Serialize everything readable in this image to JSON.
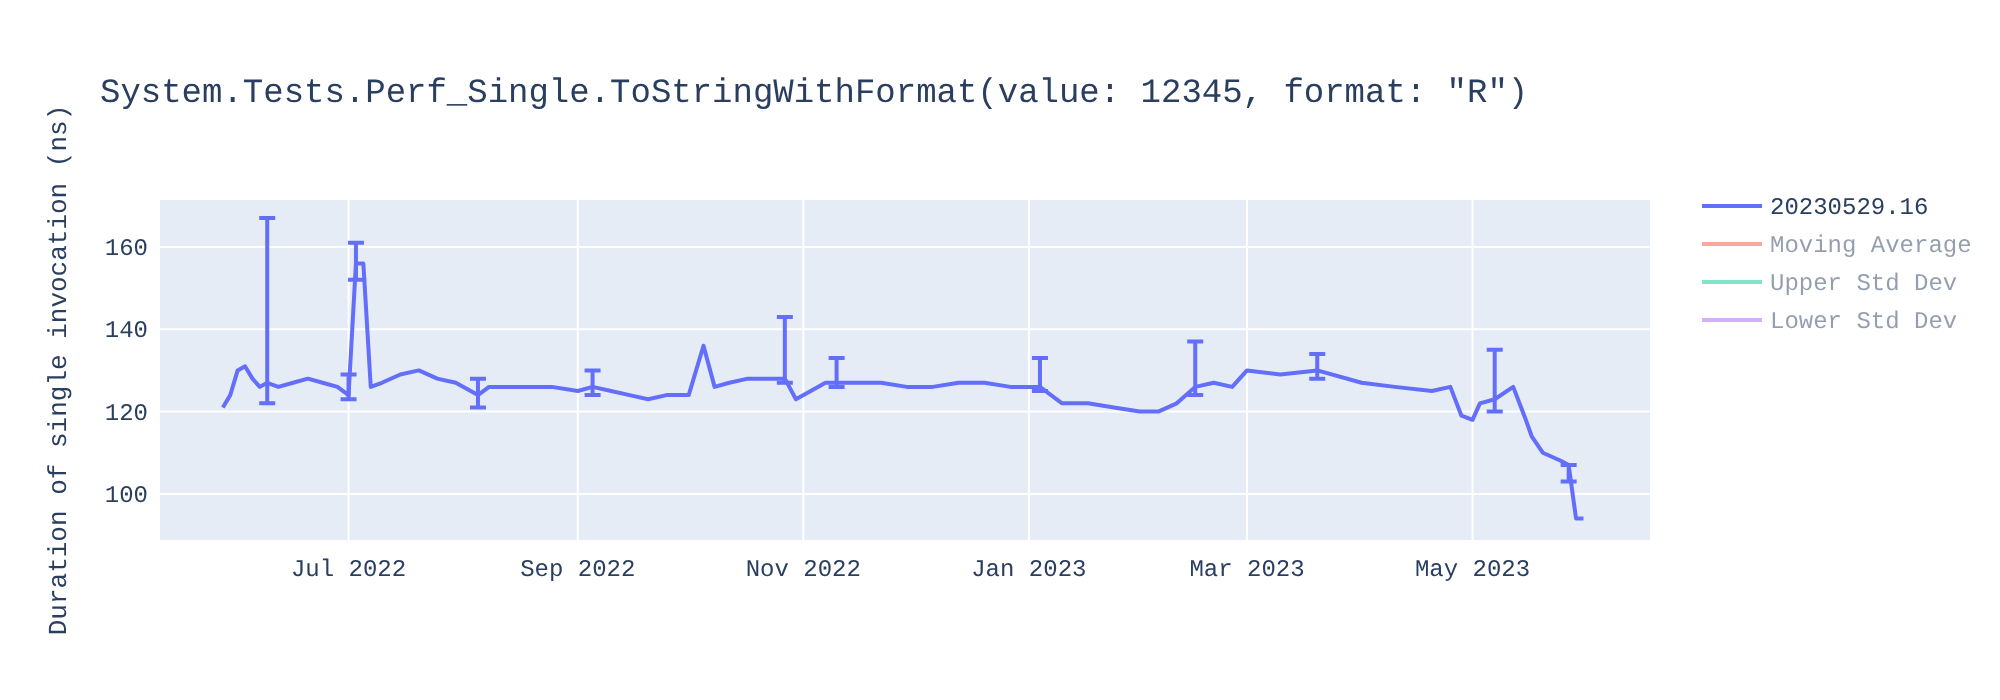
{
  "chart_data": {
    "type": "line",
    "title": "System.Tests.Perf_Single.ToStringWithFormat(value: 12345, format: \"R\")",
    "ylabel": "Duration of single invocation (ns)",
    "x": [
      "2022-05-28",
      "2022-05-30",
      "2022-06-01",
      "2022-06-03",
      "2022-06-05",
      "2022-06-07",
      "2022-06-09",
      "2022-06-12",
      "2022-06-16",
      "2022-06-20",
      "2022-06-24",
      "2022-06-28",
      "2022-07-01",
      "2022-07-03",
      "2022-07-05",
      "2022-07-07",
      "2022-07-10",
      "2022-07-15",
      "2022-07-20",
      "2022-07-25",
      "2022-07-30",
      "2022-08-05",
      "2022-08-08",
      "2022-08-25",
      "2022-09-01",
      "2022-09-05",
      "2022-09-10",
      "2022-09-15",
      "2022-09-20",
      "2022-09-25",
      "2022-10-01",
      "2022-10-05",
      "2022-10-08",
      "2022-10-12",
      "2022-10-17",
      "2022-10-22",
      "2022-10-27",
      "2022-10-30",
      "2022-11-03",
      "2022-11-07",
      "2022-11-10",
      "2022-11-15",
      "2022-11-22",
      "2022-11-29",
      "2022-12-06",
      "2022-12-13",
      "2022-12-20",
      "2022-12-27",
      "2023-01-01",
      "2023-01-04",
      "2023-01-10",
      "2023-01-17",
      "2023-01-24",
      "2023-01-31",
      "2023-02-05",
      "2023-02-10",
      "2023-02-15",
      "2023-02-20",
      "2023-02-25",
      "2023-03-01",
      "2023-03-10",
      "2023-03-20",
      "2023-04-01",
      "2023-04-10",
      "2023-04-20",
      "2023-04-25",
      "2023-04-28",
      "2023-05-01",
      "2023-05-03",
      "2023-05-07",
      "2023-05-12",
      "2023-05-15",
      "2023-05-17",
      "2023-05-20",
      "2023-05-25",
      "2023-05-27",
      "2023-05-29",
      "2023-05-31"
    ],
    "series": [
      {
        "name": "20230529.16",
        "color": "#636efa",
        "values": [
          121,
          124,
          130,
          131,
          128,
          126,
          127,
          126,
          127,
          128,
          127,
          126,
          124,
          156,
          156,
          126,
          127,
          129,
          130,
          128,
          127,
          124,
          126,
          126,
          125,
          126,
          125,
          124,
          123,
          124,
          124,
          136,
          126,
          127,
          128,
          128,
          128,
          123,
          125,
          127,
          127,
          127,
          127,
          126,
          126,
          127,
          127,
          126,
          126,
          126,
          122,
          122,
          121,
          120,
          120,
          122,
          126,
          127,
          126,
          130,
          129,
          130,
          127,
          126,
          125,
          126,
          119,
          118,
          122,
          123,
          126,
          119,
          114,
          110,
          108,
          107,
          94,
          94
        ],
        "errors": [
          null,
          null,
          null,
          null,
          null,
          null,
          [
            122,
            167
          ],
          null,
          null,
          null,
          null,
          null,
          [
            123,
            129
          ],
          [
            152,
            161
          ],
          null,
          null,
          null,
          null,
          null,
          null,
          null,
          [
            121,
            128
          ],
          null,
          null,
          null,
          [
            124,
            130
          ],
          null,
          null,
          null,
          null,
          null,
          null,
          null,
          null,
          null,
          null,
          [
            127,
            143
          ],
          null,
          null,
          null,
          [
            126,
            133
          ],
          null,
          null,
          null,
          null,
          null,
          null,
          null,
          null,
          [
            125,
            133
          ],
          null,
          null,
          null,
          null,
          null,
          null,
          [
            124,
            137
          ],
          null,
          null,
          null,
          null,
          [
            128,
            134
          ],
          null,
          null,
          null,
          null,
          null,
          null,
          null,
          [
            120,
            135
          ],
          null,
          null,
          null,
          null,
          null,
          [
            103,
            107
          ],
          null,
          null
        ]
      },
      {
        "name": "Moving Average",
        "color": "#ef553b",
        "values": [
          null,
          null,
          null,
          null,
          null,
          null,
          null,
          null,
          null,
          null,
          null,
          null,
          null,
          null,
          null,
          null,
          null,
          null,
          null,
          null,
          null,
          null,
          null,
          null,
          null,
          null,
          null,
          null,
          null,
          null,
          null,
          null,
          null,
          null,
          null,
          null,
          null,
          null,
          null,
          null,
          null,
          null,
          null,
          null,
          null,
          null,
          null,
          null,
          null,
          null,
          null,
          null,
          null,
          null,
          null,
          null,
          null,
          null,
          null,
          null,
          null,
          null,
          null,
          null,
          null,
          null,
          null,
          null,
          null,
          null,
          null,
          null,
          null,
          null,
          null,
          null,
          null,
          null
        ]
      },
      {
        "name": "Upper Std Dev",
        "color": "#00cc96",
        "values": [
          null,
          null,
          null,
          null,
          null,
          null,
          null,
          null,
          null,
          null,
          null,
          null,
          null,
          null,
          null,
          null,
          null,
          null,
          null,
          null,
          null,
          null,
          null,
          null,
          null,
          null,
          null,
          null,
          null,
          null,
          null,
          null,
          null,
          null,
          null,
          null,
          null,
          null,
          null,
          null,
          null,
          null,
          null,
          null,
          null,
          null,
          null,
          null,
          null,
          null,
          null,
          null,
          null,
          null,
          null,
          null,
          null,
          null,
          null,
          null,
          null,
          null,
          null,
          null,
          null,
          null,
          null,
          null,
          null,
          null,
          null,
          null,
          null,
          null,
          null,
          null,
          null,
          null
        ]
      },
      {
        "name": "Lower Std Dev",
        "color": "#ab63fa",
        "values": [
          null,
          null,
          null,
          null,
          null,
          null,
          null,
          null,
          null,
          null,
          null,
          null,
          null,
          null,
          null,
          null,
          null,
          null,
          null,
          null,
          null,
          null,
          null,
          null,
          null,
          null,
          null,
          null,
          null,
          null,
          null,
          null,
          null,
          null,
          null,
          null,
          null,
          null,
          null,
          null,
          null,
          null,
          null,
          null,
          null,
          null,
          null,
          null,
          null,
          null,
          null,
          null,
          null,
          null,
          null,
          null,
          null,
          null,
          null,
          null,
          null,
          null,
          null,
          null,
          null,
          null,
          null,
          null,
          null,
          null,
          null,
          null,
          null,
          null,
          null,
          null,
          null,
          null
        ]
      }
    ],
    "xlim": [
      "2022-05-11",
      "2023-06-18"
    ],
    "xticks": [
      {
        "value": "2022-07-01",
        "label": "Jul 2022"
      },
      {
        "value": "2022-09-01",
        "label": "Sep 2022"
      },
      {
        "value": "2022-11-01",
        "label": "Nov 2022"
      },
      {
        "value": "2023-01-01",
        "label": "Jan 2023"
      },
      {
        "value": "2023-03-01",
        "label": "Mar 2023"
      },
      {
        "value": "2023-05-01",
        "label": "May 2023"
      }
    ],
    "ylim": [
      88.8,
      171.4
    ],
    "yticks": [
      100,
      120,
      140,
      160
    ],
    "grid": true,
    "legend": "top right",
    "line_style": "solid"
  }
}
